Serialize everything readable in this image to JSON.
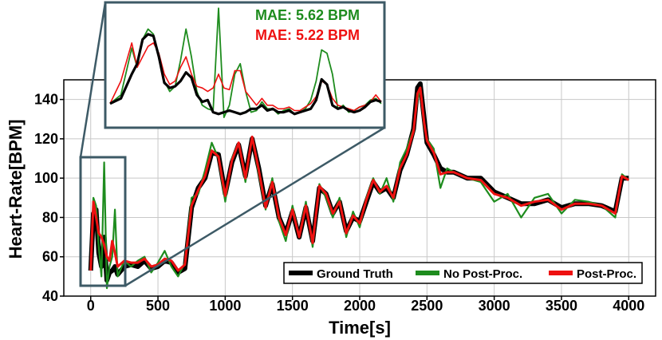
{
  "chart_data": {
    "type": "line",
    "xlabel": "Time[s]",
    "ylabel": "Heart-Rate[BPM]",
    "xlim": [
      -200,
      4200
    ],
    "ylim": [
      40,
      150
    ],
    "xticks": [
      0,
      500,
      1000,
      1500,
      2000,
      2500,
      3000,
      3500,
      4000
    ],
    "yticks": [
      40,
      60,
      80,
      100,
      120,
      140
    ],
    "grid": true,
    "legend_position": "bottom-right",
    "series": [
      {
        "name": "Ground Truth",
        "color": "#000000",
        "x": [
          0,
          20,
          40,
          60,
          80,
          100,
          120,
          140,
          160,
          180,
          200,
          250,
          300,
          350,
          400,
          450,
          500,
          550,
          600,
          650,
          700,
          750,
          800,
          850,
          900,
          950,
          1000,
          1050,
          1100,
          1150,
          1200,
          1250,
          1300,
          1350,
          1400,
          1450,
          1500,
          1550,
          1600,
          1650,
          1700,
          1750,
          1800,
          1850,
          1900,
          1950,
          2000,
          2050,
          2100,
          2150,
          2200,
          2250,
          2300,
          2350,
          2400,
          2430,
          2450,
          2480,
          2500,
          2550,
          2600,
          2650,
          2700,
          2800,
          2900,
          3000,
          3100,
          3200,
          3300,
          3400,
          3500,
          3600,
          3700,
          3800,
          3900,
          3950,
          4000
        ],
        "y": [
          53,
          82,
          84,
          62,
          55,
          70,
          48,
          52,
          53,
          55,
          51,
          55,
          56,
          55,
          58,
          54,
          55,
          58,
          57,
          52,
          54,
          85,
          95,
          100,
          113,
          112,
          92,
          108,
          117,
          101,
          120,
          105,
          86,
          97,
          80,
          72,
          83,
          70,
          85,
          68,
          95,
          92,
          82,
          88,
          73,
          80,
          78,
          88,
          98,
          93,
          95,
          90,
          104,
          112,
          125,
          146,
          148,
          130,
          118,
          112,
          105,
          103,
          103,
          100,
          100,
          93,
          90,
          87,
          87,
          89,
          85,
          87,
          87,
          86,
          83,
          100,
          100
        ]
      },
      {
        "name": "No Post-Proc.",
        "color": "#1e8c1e",
        "x": [
          0,
          20,
          40,
          60,
          80,
          100,
          120,
          140,
          160,
          180,
          200,
          250,
          300,
          350,
          400,
          450,
          500,
          550,
          600,
          650,
          700,
          750,
          800,
          850,
          900,
          950,
          1000,
          1050,
          1100,
          1150,
          1200,
          1250,
          1300,
          1350,
          1400,
          1450,
          1500,
          1550,
          1600,
          1650,
          1700,
          1750,
          1800,
          1850,
          1900,
          1950,
          2000,
          2050,
          2100,
          2150,
          2200,
          2250,
          2300,
          2350,
          2400,
          2430,
          2450,
          2480,
          2500,
          2550,
          2600,
          2650,
          2700,
          2800,
          2900,
          3000,
          3100,
          3200,
          3300,
          3400,
          3500,
          3600,
          3700,
          3800,
          3900,
          3950,
          4000
        ],
        "y": [
          53,
          90,
          86,
          65,
          50,
          108,
          44,
          55,
          60,
          84,
          50,
          58,
          55,
          58,
          60,
          52,
          57,
          63,
          55,
          50,
          57,
          90,
          92,
          104,
          118,
          110,
          88,
          110,
          118,
          98,
          121,
          102,
          84,
          100,
          78,
          68,
          86,
          70,
          88,
          65,
          97,
          90,
          80,
          90,
          70,
          83,
          75,
          90,
          100,
          92,
          100,
          88,
          108,
          115,
          125,
          140,
          145,
          126,
          120,
          115,
          95,
          105,
          103,
          100,
          98,
          88,
          92,
          80,
          90,
          92,
          82,
          89,
          88,
          86,
          80,
          102,
          99
        ]
      },
      {
        "name": "Post-Proc.",
        "color": "#ee1111",
        "x": [
          0,
          20,
          40,
          60,
          80,
          100,
          120,
          140,
          160,
          180,
          200,
          250,
          300,
          350,
          400,
          450,
          500,
          550,
          600,
          650,
          700,
          750,
          800,
          850,
          900,
          950,
          1000,
          1050,
          1100,
          1150,
          1200,
          1250,
          1300,
          1350,
          1400,
          1450,
          1500,
          1550,
          1600,
          1650,
          1700,
          1750,
          1800,
          1850,
          1900,
          1950,
          2000,
          2050,
          2100,
          2150,
          2200,
          2250,
          2300,
          2350,
          2400,
          2430,
          2450,
          2480,
          2500,
          2550,
          2600,
          2650,
          2700,
          2800,
          2900,
          3000,
          3100,
          3200,
          3300,
          3400,
          3500,
          3600,
          3700,
          3800,
          3900,
          3950,
          4000
        ],
        "y": [
          53,
          88,
          80,
          72,
          70,
          66,
          60,
          58,
          68,
          62,
          55,
          58,
          57,
          57,
          59,
          55,
          56,
          59,
          58,
          53,
          56,
          86,
          94,
          101,
          114,
          111,
          91,
          109,
          118,
          100,
          121,
          104,
          85,
          98,
          80,
          71,
          84,
          70,
          86,
          67,
          96,
          92,
          82,
          88,
          72,
          81,
          77,
          89,
          99,
          93,
          96,
          90,
          105,
          112,
          124,
          143,
          146,
          128,
          119,
          113,
          102,
          103,
          103,
          100,
          99,
          92,
          90,
          86,
          88,
          89,
          84,
          87,
          87,
          86,
          82,
          101,
          99
        ]
      }
    ]
  },
  "inset": {
    "mae_no_post": "MAE: 5.62 BPM",
    "mae_post": "MAE: 5.22 BPM",
    "x": [
      0,
      10,
      20,
      25,
      30,
      35,
      40,
      45,
      50,
      55,
      60,
      65,
      70,
      75,
      80,
      85,
      90,
      95,
      100,
      105,
      110,
      115,
      120,
      125,
      130,
      135,
      140,
      145,
      150,
      155,
      160,
      165,
      170,
      175,
      180,
      185,
      190,
      195,
      200,
      205,
      210,
      215,
      220,
      225,
      230,
      235,
      240,
      245,
      250
    ],
    "gt": [
      53,
      56,
      70,
      76,
      90,
      93,
      92,
      80,
      65,
      62,
      63,
      66,
      71,
      68,
      58,
      54,
      55,
      48,
      47,
      48,
      49,
      48,
      47,
      48,
      50,
      50,
      52,
      49,
      50,
      48,
      48,
      49,
      47,
      48,
      49,
      50,
      55,
      67,
      64,
      52,
      50,
      51,
      49,
      48,
      49,
      51,
      54,
      55,
      54
    ],
    "no_post": [
      53,
      58,
      85,
      74,
      90,
      96,
      93,
      79,
      66,
      60,
      63,
      78,
      96,
      80,
      60,
      52,
      50,
      49,
      108,
      45,
      52,
      70,
      76,
      60,
      48,
      49,
      54,
      50,
      50,
      47,
      49,
      50,
      47,
      48,
      50,
      55,
      66,
      84,
      82,
      70,
      50,
      52,
      48,
      49,
      51,
      52,
      55,
      56,
      53
    ],
    "post": [
      53,
      66,
      88,
      74,
      80,
      86,
      88,
      82,
      70,
      64,
      66,
      74,
      80,
      70,
      63,
      62,
      60,
      62,
      70,
      62,
      61,
      72,
      72,
      60,
      56,
      52,
      56,
      52,
      52,
      50,
      50,
      51,
      49,
      49,
      51,
      53,
      57,
      66,
      64,
      56,
      52,
      51,
      50,
      49,
      51,
      52,
      54,
      58,
      54
    ]
  }
}
